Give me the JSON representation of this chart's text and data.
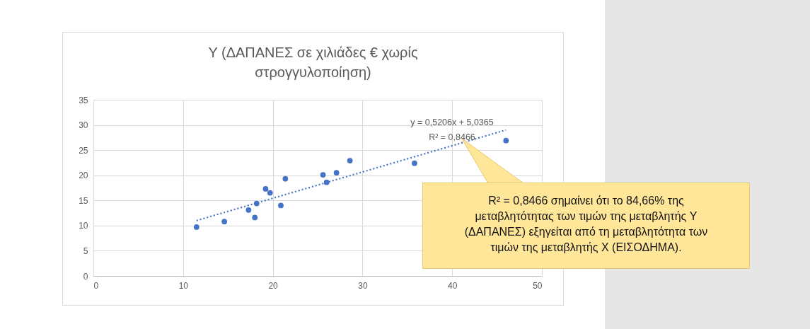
{
  "chart_data": {
    "type": "scatter",
    "title": "Y (ΔΑΠΑΝΕΣ σε χιλιάδες € χωρίς στρογγυλοποίηση)",
    "xlim": [
      0,
      50
    ],
    "xticks": [
      0,
      10,
      20,
      30,
      40,
      50
    ],
    "ylim": [
      0,
      35
    ],
    "yticks": [
      0,
      5,
      10,
      15,
      20,
      25,
      30,
      35
    ],
    "grid": true,
    "series": [
      {
        "marker": "circle",
        "color": "#4472c4",
        "x": [
          11.5,
          14.6,
          17.3,
          18.0,
          18.2,
          19.2,
          19.7,
          20.9,
          21.4,
          25.6,
          26.0,
          27.1,
          28.6,
          35.8,
          46.0
        ],
        "values": [
          9.7,
          10.8,
          13.1,
          11.6,
          14.4,
          17.3,
          16.5,
          14.0,
          19.3,
          20.1,
          18.6,
          20.5,
          22.9,
          22.4,
          26.9
        ]
      },
      {
        "type": "line",
        "line_style": "dotted",
        "color": "#4472c4",
        "x": [
          11.5,
          46.0
        ],
        "values": [
          11.0,
          29.0
        ]
      }
    ],
    "annotations": [
      "y = 0,5206x + 5,0365",
      "R² = 0,8466",
      "R² = 0,8466 σημαίνει ότι το 84,66% της μεταβλητότητας των τιμών της μεταβλητής Y (ΔΑΠΑΝΕΣ) εξηγείται από τη μεταβλητότητα των τιμών της μεταβλητής X (ΕΙΣΟΔΗΜΑ)."
    ]
  }
}
